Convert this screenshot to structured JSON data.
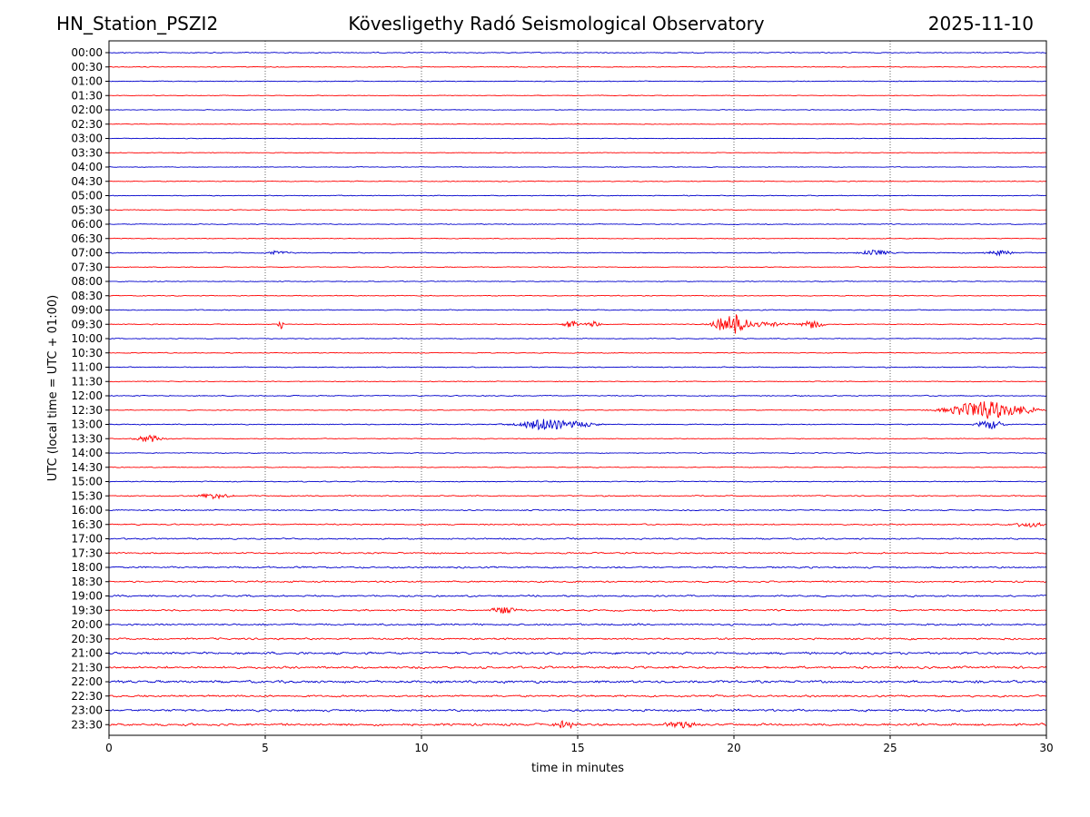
{
  "header": {
    "station": "HN_Station_PSZI2",
    "observatory": "Kövesligethy Radó Seismological Observatory",
    "date": "2025-11-10"
  },
  "chart_data": {
    "type": "line",
    "title": "Kövesligethy Radó Seismological Observatory",
    "xlabel": "time in minutes",
    "ylabel": "UTC (local time = UTC + 01:00)",
    "xlim": [
      0,
      30
    ],
    "xticks": [
      "0",
      "5",
      "10",
      "15",
      "20",
      "25",
      "30"
    ],
    "xtick_values": [
      0,
      5,
      10,
      15,
      20,
      25,
      30
    ],
    "grid_x": true,
    "row_labels": [
      "00:00",
      "00:30",
      "01:00",
      "01:30",
      "02:00",
      "02:30",
      "03:00",
      "03:30",
      "04:00",
      "04:30",
      "05:00",
      "05:30",
      "06:00",
      "06:30",
      "07:00",
      "07:30",
      "08:00",
      "08:30",
      "09:00",
      "09:30",
      "10:00",
      "10:30",
      "11:00",
      "11:30",
      "12:00",
      "12:30",
      "13:00",
      "13:30",
      "14:00",
      "14:30",
      "15:00",
      "15:30",
      "16:00",
      "16:30",
      "17:00",
      "17:30",
      "18:00",
      "18:30",
      "19:00",
      "19:30",
      "20:00",
      "20:30",
      "21:00",
      "21:30",
      "22:00",
      "22:30",
      "23:00",
      "23:30"
    ],
    "colors": [
      "#0000cc",
      "#ff0000"
    ],
    "noise_levels": [
      0.6,
      0.5,
      0.5,
      0.4,
      0.4,
      0.4,
      0.4,
      0.4,
      0.4,
      0.5,
      0.5,
      0.5,
      0.5,
      0.5,
      0.6,
      0.5,
      0.5,
      0.5,
      0.6,
      0.5,
      0.5,
      0.5,
      0.6,
      0.5,
      0.6,
      0.5,
      0.6,
      0.5,
      0.5,
      0.5,
      0.6,
      0.7,
      0.7,
      0.8,
      0.9,
      0.9,
      1.0,
      1.0,
      1.0,
      1.0,
      1.1,
      1.1,
      1.4,
      1.4,
      1.5,
      1.2,
      1.3,
      1.4
    ],
    "events": [
      {
        "row": 14,
        "minute": 24.5,
        "amplitude": 3,
        "duration": 0.6
      },
      {
        "row": 14,
        "minute": 28.5,
        "amplitude": 3,
        "duration": 0.5
      },
      {
        "row": 14,
        "minute": 5.4,
        "amplitude": 2,
        "duration": 0.4
      },
      {
        "row": 19,
        "minute": 5.5,
        "amplitude": 6,
        "duration": 0.1
      },
      {
        "row": 19,
        "minute": 14.8,
        "amplitude": 4,
        "duration": 0.3
      },
      {
        "row": 19,
        "minute": 15.5,
        "amplitude": 3,
        "duration": 0.3
      },
      {
        "row": 19,
        "minute": 19.9,
        "amplitude": 13,
        "duration": 0.6
      },
      {
        "row": 19,
        "minute": 21.0,
        "amplitude": 3,
        "duration": 0.8
      },
      {
        "row": 19,
        "minute": 22.5,
        "amplitude": 4,
        "duration": 0.5
      },
      {
        "row": 25,
        "minute": 28.0,
        "amplitude": 10,
        "duration": 1.3
      },
      {
        "row": 25,
        "minute": 29.3,
        "amplitude": 3,
        "duration": 0.7
      },
      {
        "row": 26,
        "minute": 13.9,
        "amplitude": 7,
        "duration": 0.9
      },
      {
        "row": 26,
        "minute": 15.0,
        "amplitude": 3,
        "duration": 0.8
      },
      {
        "row": 26,
        "minute": 28.2,
        "amplitude": 5,
        "duration": 0.5
      },
      {
        "row": 27,
        "minute": 1.3,
        "amplitude": 4,
        "duration": 0.5
      },
      {
        "row": 31,
        "minute": 3.4,
        "amplitude": 3,
        "duration": 0.6
      },
      {
        "row": 33,
        "minute": 29.4,
        "amplitude": 3,
        "duration": 0.6
      },
      {
        "row": 39,
        "minute": 12.6,
        "amplitude": 4,
        "duration": 0.5
      },
      {
        "row": 47,
        "minute": 14.6,
        "amplitude": 4,
        "duration": 0.4
      },
      {
        "row": 47,
        "minute": 18.3,
        "amplitude": 4,
        "duration": 0.6
      }
    ]
  }
}
